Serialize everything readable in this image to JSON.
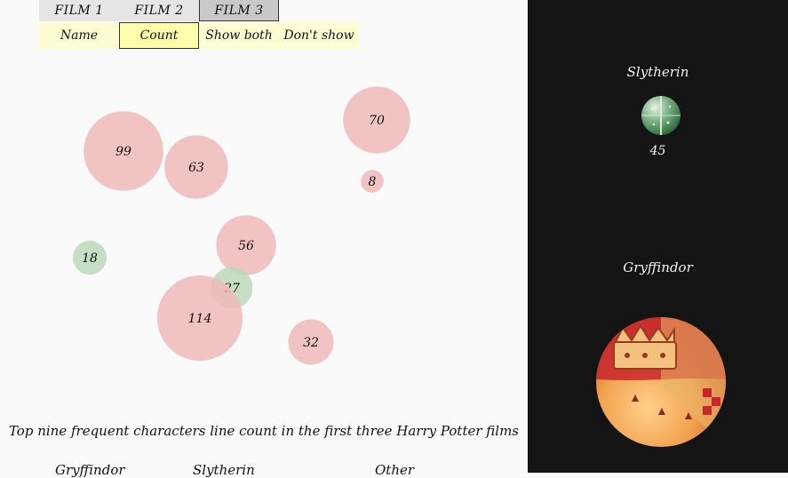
{
  "film_tabs": [
    {
      "label": "FILM 1",
      "active": false
    },
    {
      "label": "FILM 2",
      "active": false
    },
    {
      "label": "FILM 3",
      "active": true
    }
  ],
  "mode_buttons": [
    {
      "label": "Name",
      "active": false
    },
    {
      "label": "Count",
      "active": true
    },
    {
      "label": "Show both",
      "active": false
    },
    {
      "label": "Don't show",
      "active": false
    }
  ],
  "colors": {
    "gryffindor": "#f0b9b9",
    "slytherin": "#bcd8bc",
    "other": "#d8d8d8"
  },
  "bubbles": [
    {
      "value": 99,
      "house": "gryffindor"
    },
    {
      "value": 63,
      "house": "gryffindor"
    },
    {
      "value": 70,
      "house": "gryffindor"
    },
    {
      "value": 8,
      "house": "gryffindor"
    },
    {
      "value": 56,
      "house": "gryffindor"
    },
    {
      "value": 18,
      "house": "slytherin"
    },
    {
      "value": 27,
      "house": "slytherin"
    },
    {
      "value": 114,
      "house": "gryffindor"
    },
    {
      "value": 32,
      "house": "gryffindor"
    }
  ],
  "caption": "Top nine frequent characters line count in the first three Harry Potter films",
  "legend": [
    "Gryffindor",
    "Slytherin",
    "Other"
  ],
  "houses": {
    "slytherin": {
      "name": "Slytherin",
      "count": "45"
    },
    "gryffindor": {
      "name": "Gryffindor"
    }
  }
}
